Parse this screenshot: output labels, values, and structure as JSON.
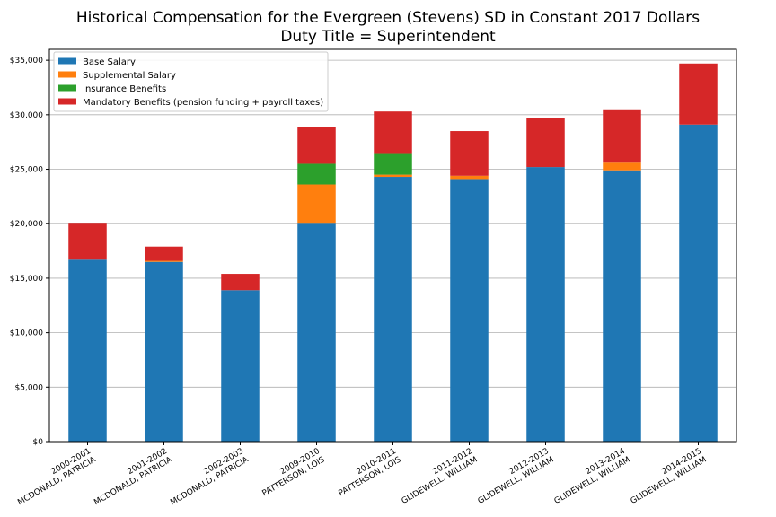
{
  "title": "Historical Compensation for the Evergreen (Stevens) SD in Constant 2017 Dollars",
  "subtitle": "Duty Title = Superintendent",
  "chart_data": {
    "type": "bar",
    "stacked": true,
    "categories": [
      [
        "2000-2001",
        "MCDONALD, PATRICIA"
      ],
      [
        "2001-2002",
        "MCDONALD, PATRICIA"
      ],
      [
        "2002-2003",
        "MCDONALD, PATRICIA"
      ],
      [
        "2009-2010",
        "PATTERSON, LOIS"
      ],
      [
        "2010-2011",
        "PATTERSON, LOIS"
      ],
      [
        "2011-2012",
        "GLIDEWELL, WILLIAM"
      ],
      [
        "2012-2013",
        "GLIDEWELL, WILLIAM"
      ],
      [
        "2013-2014",
        "GLIDEWELL, WILLIAM"
      ],
      [
        "2014-2015",
        "GLIDEWELL, WILLIAM"
      ]
    ],
    "series": [
      {
        "name": "Base Salary",
        "color": "#1f77b4",
        "values": [
          16700,
          16500,
          13900,
          20000,
          24300,
          24100,
          25200,
          24900,
          29100
        ]
      },
      {
        "name": "Supplemental Salary",
        "color": "#ff7f0e",
        "values": [
          0,
          100,
          0,
          3600,
          200,
          300,
          0,
          700,
          0
        ]
      },
      {
        "name": "Insurance Benefits",
        "color": "#2ca02c",
        "values": [
          0,
          0,
          0,
          1900,
          1900,
          0,
          0,
          0,
          0
        ]
      },
      {
        "name": "Mandatory Benefits (pension funding + payroll taxes)",
        "color": "#d62728",
        "values": [
          3300,
          1300,
          1500,
          3400,
          3900,
          4100,
          4500,
          4900,
          5600
        ]
      }
    ],
    "ylim": [
      0,
      36000
    ],
    "yticks": [
      0,
      5000,
      10000,
      15000,
      20000,
      25000,
      30000,
      35000
    ],
    "ytick_labels": [
      "$0",
      "$5,000",
      "$10,000",
      "$15,000",
      "$20,000",
      "$25,000",
      "$30,000",
      "$35,000"
    ],
    "grid": "y",
    "legend_position": "top-left"
  }
}
